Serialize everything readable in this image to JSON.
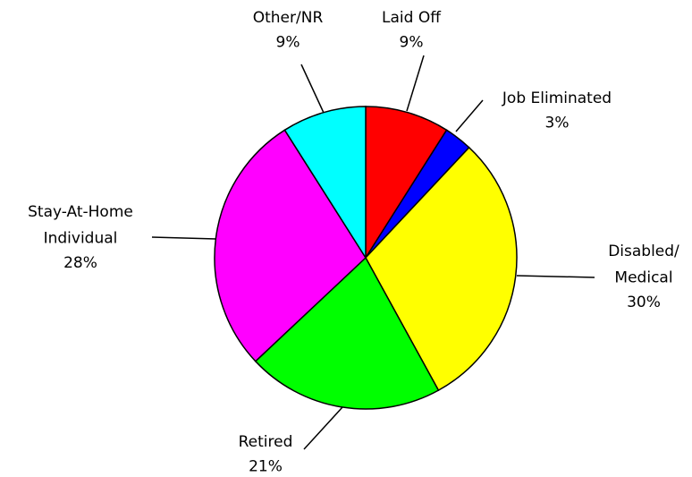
{
  "chart_data": {
    "type": "pie",
    "categories": [
      "Laid Off",
      "Job Eliminated",
      "Disabled/\nMedical",
      "Retired",
      "Stay-At-Home\nIndividual",
      "Other/NR"
    ],
    "values": [
      9,
      3,
      30,
      21,
      28,
      9
    ],
    "value_labels": [
      "9%",
      "3%",
      "30%",
      "21%",
      "28%",
      "9%"
    ],
    "colors": [
      "#ff0000",
      "#0000ff",
      "#ffff00",
      "#00ff00",
      "#ff00ff",
      "#00ffff"
    ]
  }
}
